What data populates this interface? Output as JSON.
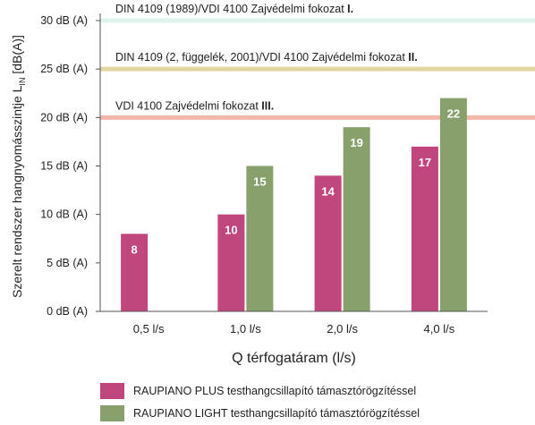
{
  "chart_data": {
    "type": "bar",
    "categories": [
      "0,5 l/s",
      "1,0 l/s",
      "2,0 l/s",
      "4,0 l/s"
    ],
    "series": [
      {
        "name": "RAUPIANO PLUS testhangcsillapító támasztórögzítéssel",
        "values": [
          8,
          10,
          14,
          17
        ],
        "color": "#c2467e"
      },
      {
        "name": "RAUPIANO LIGHT testhangcsillapító támasztórögzítéssel",
        "values": [
          null,
          15,
          19,
          22
        ],
        "color": "#87a06c"
      }
    ],
    "data_labels": [
      [
        "8",
        "10",
        "14",
        "17"
      ],
      [
        null,
        "15",
        "19",
        "22"
      ]
    ],
    "ylim": [
      0,
      30
    ],
    "yticks": [
      0,
      5,
      10,
      15,
      20,
      25,
      30
    ],
    "ytick_labels": [
      "0 dB (A)",
      "5 dB (A)",
      "10 dB (A)",
      "15 dB (A)",
      "20 dB (A)",
      "25 dB (A)",
      "30 dB (A)"
    ],
    "ylabel_main": "Szerelt rendszer hangnyomásszintje L",
    "ylabel_sub": "IN",
    "ylabel_unit": " [dB(A)]",
    "xlabel": "Q térfogatáram (l/s)",
    "grid": false,
    "legend_position": "bottom",
    "reference_lines": [
      {
        "value": 30,
        "label": "DIN 4109 (1989)/VDI 4100 Zajvédelmi fokozat ",
        "level": "I.",
        "color": "#dff2ec"
      },
      {
        "value": 25,
        "label": "DIN 4109 (2, függelék, 2001)/VDI 4100 Zajvédelmi fokozat ",
        "level": "II.",
        "color": "#e2d6a2"
      },
      {
        "value": 20,
        "label": "VDI 4100 Zajvédelmi fokozat ",
        "level": "III.",
        "color": "#f3b7aa"
      }
    ]
  }
}
